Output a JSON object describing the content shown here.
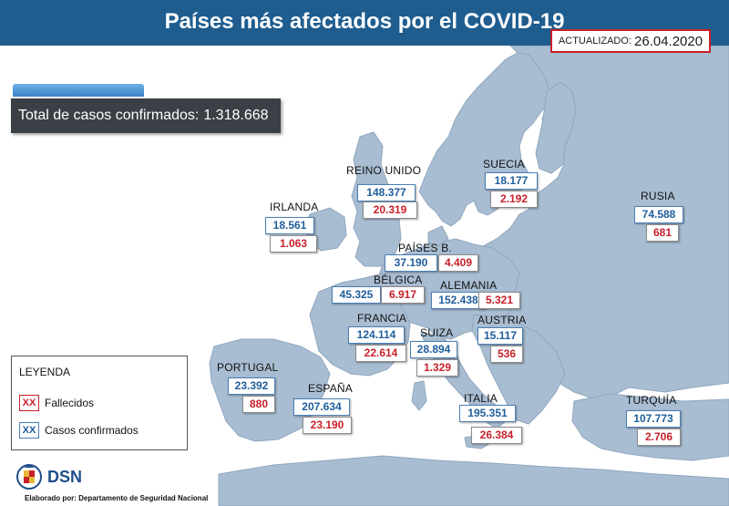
{
  "header": {
    "title": "Países más afectados por el COVID-19",
    "updated_label": "ACTUALIZADO:",
    "updated_date": "26.04.2020"
  },
  "total": {
    "label": "Total de casos confirmados:",
    "value": "1.318.668"
  },
  "countries": [
    {
      "key": "reino-unido",
      "name": "REINO UNIDO",
      "cases": "148.377",
      "deaths": "20.319"
    },
    {
      "key": "suecia",
      "name": "SUECIA",
      "cases": "18.177",
      "deaths": "2.192"
    },
    {
      "key": "irlanda",
      "name": "IRLANDA",
      "cases": "18.561",
      "deaths": "1.063"
    },
    {
      "key": "rusia",
      "name": "RUSIA",
      "cases": "74.588",
      "deaths": "681"
    },
    {
      "key": "paises-bajos",
      "name": "PAÍSES B.",
      "cases": "37.190",
      "deaths": "4.409"
    },
    {
      "key": "belgica",
      "name": "BÉLGICA",
      "cases": "45.325",
      "deaths": "6.917"
    },
    {
      "key": "alemania",
      "name": "ALEMANIA",
      "cases": "152.438",
      "deaths": "5.321"
    },
    {
      "key": "francia",
      "name": "FRANCIA",
      "cases": "124.114",
      "deaths": "22.614"
    },
    {
      "key": "suiza",
      "name": "SUIZA",
      "cases": "28.894",
      "deaths": "1.329"
    },
    {
      "key": "austria",
      "name": "AUSTRIA",
      "cases": "15.117",
      "deaths": "536"
    },
    {
      "key": "portugal",
      "name": "PORTUGAL",
      "cases": "23.392",
      "deaths": "880"
    },
    {
      "key": "espana",
      "name": "ESPAÑA",
      "cases": "207.634",
      "deaths": "23.190"
    },
    {
      "key": "italia",
      "name": "ITALIA",
      "cases": "195.351",
      "deaths": "26.384"
    },
    {
      "key": "turquia",
      "name": "TURQUÍA",
      "cases": "107.773",
      "deaths": "2.706"
    }
  ],
  "legend": {
    "title": "LEYENDA",
    "deaths_swatch": "XX",
    "deaths_label": "Fallecidos",
    "cases_swatch": "XX",
    "cases_label": "Casos confirmados"
  },
  "footer": {
    "brand": "DSN",
    "credit": "Elaborado por: Departamento de Seguridad Nacional"
  },
  "colors": {
    "header_bg": "#1f5d8f",
    "cases_text": "#1f5d9a",
    "deaths_text": "#c8202a",
    "land": "#a9bdd2",
    "sea": "#ffffff"
  }
}
